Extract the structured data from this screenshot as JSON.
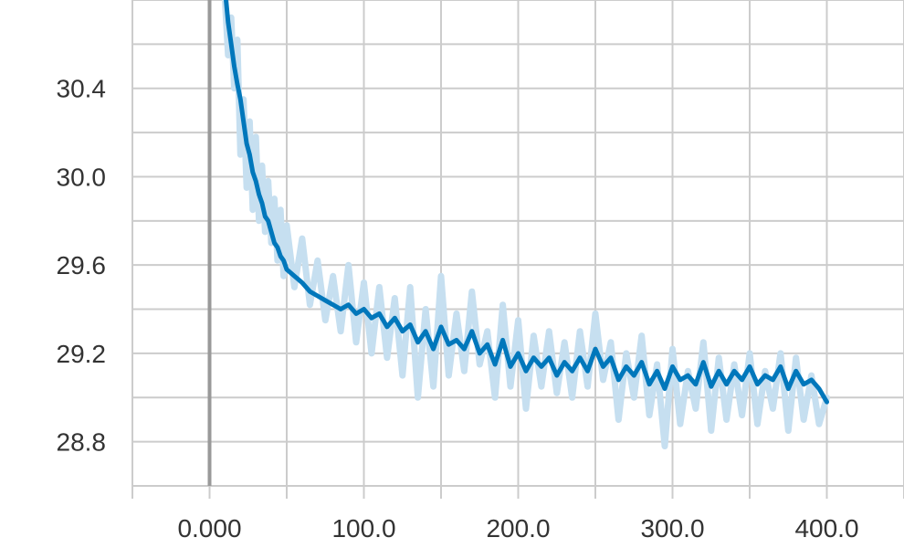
{
  "chart_data": {
    "type": "line",
    "title": "",
    "xlabel": "",
    "ylabel": "",
    "xlim": [
      -50,
      450
    ],
    "ylim": [
      28.6,
      30.8
    ],
    "grid": true,
    "x_ticks": [
      0,
      100,
      200,
      300,
      400
    ],
    "x_tick_labels": [
      "0.000",
      "100.0",
      "200.0",
      "300.0",
      "400.0"
    ],
    "y_ticks": [
      28.8,
      29.2,
      29.6,
      30.0,
      30.4
    ],
    "y_tick_labels": [
      "28.8",
      "29.2",
      "29.6",
      "30.0",
      "30.4"
    ],
    "colors": {
      "smoothed": "#0077bb",
      "raw": "#c6dff0",
      "grid": "#cccccc",
      "axis": "#999999"
    },
    "series": [
      {
        "role": "raw",
        "x": [
          10,
          12,
          14,
          16,
          18,
          20,
          22,
          24,
          26,
          28,
          30,
          32,
          34,
          36,
          38,
          40,
          42,
          44,
          46,
          48,
          50,
          55,
          60,
          65,
          70,
          75,
          80,
          85,
          90,
          95,
          100,
          105,
          110,
          115,
          120,
          125,
          130,
          135,
          140,
          145,
          150,
          155,
          160,
          165,
          170,
          175,
          180,
          185,
          190,
          195,
          200,
          205,
          210,
          215,
          220,
          225,
          230,
          235,
          240,
          245,
          250,
          255,
          260,
          265,
          270,
          275,
          280,
          285,
          290,
          295,
          300,
          305,
          310,
          315,
          320,
          325,
          330,
          335,
          340,
          345,
          350,
          355,
          360,
          365,
          370,
          375,
          380,
          385,
          390,
          395,
          400
        ],
        "values": [
          30.8,
          30.55,
          30.72,
          30.4,
          30.62,
          30.1,
          30.35,
          29.95,
          30.25,
          29.85,
          30.18,
          29.8,
          30.05,
          29.75,
          29.98,
          29.7,
          29.9,
          29.62,
          29.85,
          29.55,
          29.78,
          29.5,
          29.72,
          29.42,
          29.62,
          29.35,
          29.55,
          29.3,
          29.6,
          29.25,
          29.52,
          29.2,
          29.5,
          29.18,
          29.45,
          29.1,
          29.5,
          29.0,
          29.4,
          29.05,
          29.55,
          29.1,
          29.38,
          29.12,
          29.48,
          29.15,
          29.3,
          29.0,
          29.42,
          29.05,
          29.35,
          28.95,
          29.28,
          29.05,
          29.3,
          29.02,
          29.25,
          29.0,
          29.3,
          29.05,
          29.38,
          29.08,
          29.25,
          28.9,
          29.2,
          29.0,
          29.28,
          28.92,
          29.15,
          28.78,
          29.22,
          28.88,
          29.12,
          28.95,
          29.25,
          28.85,
          29.18,
          28.9,
          29.15,
          28.92,
          29.2,
          28.88,
          29.12,
          28.95,
          29.2,
          28.85,
          29.18,
          28.9,
          29.1,
          28.88,
          29.0
        ]
      },
      {
        "role": "smoothed",
        "x": [
          10,
          12,
          14,
          16,
          18,
          20,
          22,
          24,
          26,
          28,
          30,
          32,
          34,
          36,
          38,
          40,
          42,
          44,
          46,
          48,
          50,
          55,
          60,
          65,
          70,
          75,
          80,
          85,
          90,
          95,
          100,
          105,
          110,
          115,
          120,
          125,
          130,
          135,
          140,
          145,
          150,
          155,
          160,
          165,
          170,
          175,
          180,
          185,
          190,
          195,
          200,
          205,
          210,
          215,
          220,
          225,
          230,
          235,
          240,
          245,
          250,
          255,
          260,
          265,
          270,
          275,
          280,
          285,
          290,
          295,
          300,
          305,
          310,
          315,
          320,
          325,
          330,
          335,
          340,
          345,
          350,
          355,
          360,
          365,
          370,
          375,
          380,
          385,
          390,
          395,
          400
        ],
        "values": [
          30.85,
          30.7,
          30.6,
          30.5,
          30.42,
          30.35,
          30.25,
          30.15,
          30.1,
          30.02,
          29.98,
          29.92,
          29.88,
          29.82,
          29.8,
          29.75,
          29.7,
          29.68,
          29.64,
          29.62,
          29.58,
          29.55,
          29.52,
          29.48,
          29.46,
          29.44,
          29.42,
          29.4,
          29.42,
          29.38,
          29.4,
          29.36,
          29.38,
          29.32,
          29.36,
          29.3,
          29.33,
          29.25,
          29.3,
          29.22,
          29.32,
          29.24,
          29.26,
          29.22,
          29.3,
          29.2,
          29.24,
          29.15,
          29.26,
          29.14,
          29.2,
          29.12,
          29.18,
          29.14,
          29.18,
          29.1,
          29.16,
          29.12,
          29.18,
          29.12,
          29.22,
          29.14,
          29.18,
          29.08,
          29.14,
          29.1,
          29.16,
          29.06,
          29.12,
          29.04,
          29.14,
          29.08,
          29.1,
          29.06,
          29.16,
          29.05,
          29.12,
          29.06,
          29.12,
          29.08,
          29.14,
          29.06,
          29.1,
          29.08,
          29.14,
          29.04,
          29.12,
          29.06,
          29.08,
          29.04,
          28.98
        ]
      }
    ]
  }
}
